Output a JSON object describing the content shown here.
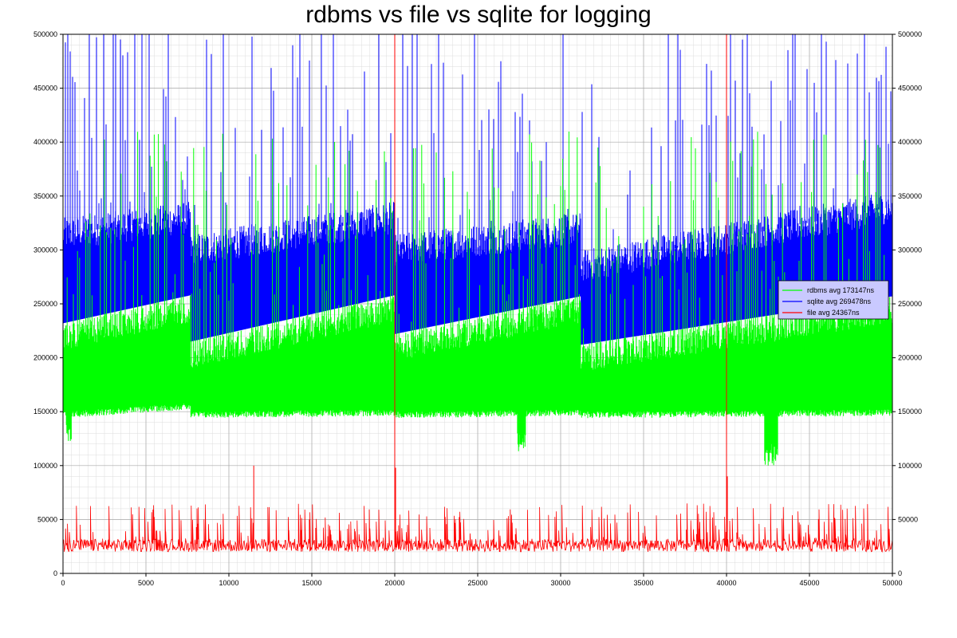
{
  "chart_data": {
    "type": "line",
    "title": "rdbms vs file vs sqlite for logging",
    "xlabel": "",
    "ylabel": "",
    "xlim": [
      0,
      50000
    ],
    "ylim": [
      0,
      500000
    ],
    "x_ticks": [
      0,
      5000,
      10000,
      15000,
      20000,
      25000,
      30000,
      35000,
      40000,
      45000,
      50000
    ],
    "x_tick_labels": [
      "0",
      "5000",
      "10000",
      "15000",
      "20000",
      "25000",
      "30000",
      "35000",
      "40000",
      "45000",
      "50000"
    ],
    "y_ticks": [
      0,
      50000,
      100000,
      150000,
      200000,
      250000,
      300000,
      350000,
      400000,
      450000,
      500000
    ],
    "y_tick_labels": [
      "0",
      "50000",
      "100000",
      "150000",
      "200000",
      "250000",
      "300000",
      "350000",
      "400000",
      "450000",
      "500000"
    ],
    "grid": true,
    "legend_position": "right",
    "series": [
      {
        "name": "rdbms avg 173147ns",
        "color": "#00ff00",
        "segments": [
          {
            "x_start": 0,
            "x_end": 7700,
            "lower": [
              150000,
              158000
            ],
            "upper": [
              232000,
              258000
            ]
          },
          {
            "x_start": 7700,
            "x_end": 20000,
            "lower": [
              150000,
              152000
            ],
            "upper": [
              215000,
              258000
            ]
          },
          {
            "x_start": 20000,
            "x_end": 31200,
            "lower": [
              150000,
              152000
            ],
            "upper": [
              222000,
              257000
            ]
          },
          {
            "x_start": 31200,
            "x_end": 50000,
            "lower": [
              150000,
              152000
            ],
            "upper": [
              212000,
              257000
            ]
          }
        ],
        "dips": [
          {
            "x_start": 200,
            "x_end": 500,
            "y": 118000
          },
          {
            "x_start": 27400,
            "x_end": 27900,
            "y": 110000
          },
          {
            "x_start": 42300,
            "x_end": 43100,
            "y": 100000
          }
        ],
        "spike_mean": 330000,
        "spike_spread": 80000
      },
      {
        "name": "sqlite avg 269478ns",
        "color": "#0000ff",
        "segments": [
          {
            "x_start": 0,
            "x_end": 7700,
            "lower": [
              232000,
              258000
            ],
            "upper": [
              315000,
              330000
            ]
          },
          {
            "x_start": 7700,
            "x_end": 20000,
            "lower": [
              215000,
              258000
            ],
            "upper": [
              300000,
              330000
            ]
          },
          {
            "x_start": 20000,
            "x_end": 31200,
            "lower": [
              222000,
              257000
            ],
            "upper": [
              300000,
              320000
            ]
          },
          {
            "x_start": 31200,
            "x_end": 50000,
            "lower": [
              212000,
              257000
            ],
            "upper": [
              285000,
              340000
            ]
          }
        ],
        "spike_mean": 420000,
        "spike_spread": 90000
      },
      {
        "name": "file avg 24367ns",
        "color": "#ff0000",
        "baseline": 24367,
        "band": [
          20000,
          32000
        ],
        "spikes": [
          {
            "x": 0,
            "y": 122000
          },
          {
            "x": 20000,
            "y": 500000
          },
          {
            "x": 40000,
            "y": 500000
          },
          {
            "x": 11500,
            "y": 100000
          },
          {
            "x": 20050,
            "y": 98000
          },
          {
            "x": 40050,
            "y": 90000
          }
        ],
        "spike_mean": 50000,
        "spike_spread": 15000
      }
    ]
  }
}
